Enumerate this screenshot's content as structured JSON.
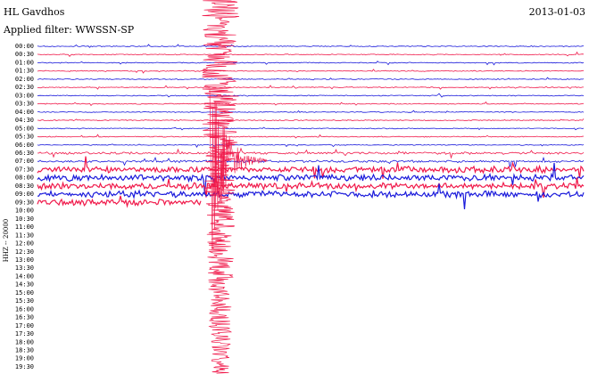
{
  "header": {
    "station": "HL Gavdhos",
    "filter": "Applied filter: WWSSN-SP",
    "date": "2013-01-03",
    "channel": "HHZ -- 20000"
  },
  "rows": [
    "00:00",
    "00:30",
    "01:00",
    "01:30",
    "02:00",
    "02:30",
    "03:00",
    "03:30",
    "04:00",
    "04:30",
    "05:00",
    "05:30",
    "06:00",
    "06:30",
    "07:00",
    "07:30",
    "08:00",
    "08:30",
    "09:00",
    "09:30",
    "10:00",
    "10:30",
    "11:00",
    "11:30",
    "12:00",
    "12:30",
    "13:00",
    "13:30",
    "14:00",
    "14:30",
    "15:00",
    "15:30",
    "16:00",
    "16:30",
    "17:00",
    "17:30",
    "18:00",
    "18:30",
    "19:00",
    "19:30"
  ],
  "trace_colors": [
    "#1a1adb",
    "#f0194a"
  ]
}
